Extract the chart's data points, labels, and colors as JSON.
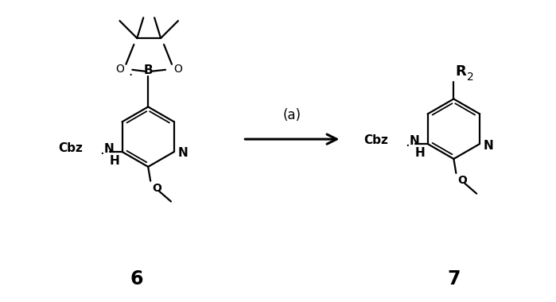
{
  "bg_color": "#ffffff",
  "fig_width": 6.99,
  "fig_height": 3.8,
  "dpi": 100,
  "label_6": "6",
  "label_7": "7",
  "reaction_label": "(a)"
}
